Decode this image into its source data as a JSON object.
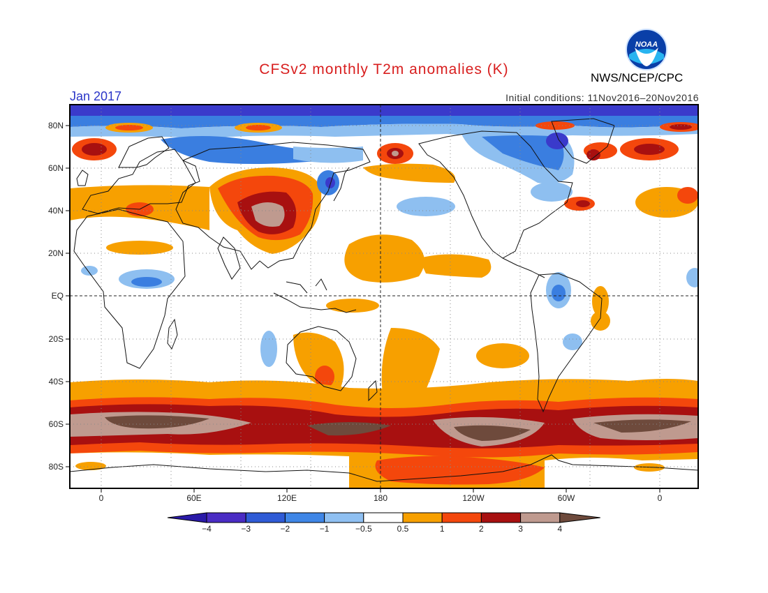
{
  "header": {
    "title": "CFSv2 monthly T2m anomalies (K)",
    "agency": "NWS/NCEP/CPC",
    "period": "Jan 2017",
    "initial_conditions": "Initial conditions: 11Nov2016–20Nov2016",
    "logo_text": "NOAA"
  },
  "map": {
    "lon_labels": [
      "0",
      "60E",
      "120E",
      "180",
      "120W",
      "60W",
      "0"
    ],
    "lat_labels": [
      "80N",
      "60N",
      "40N",
      "20N",
      "EQ",
      "20S",
      "40S",
      "60S",
      "80S"
    ]
  },
  "colorbar": {
    "levels": [
      "−4",
      "−3",
      "−2",
      "−1",
      "−0.5",
      "0.5",
      "1",
      "2",
      "3",
      "4"
    ],
    "colors": [
      "#4a2cc4",
      "#2f5bd6",
      "#3f86e6",
      "#8fc0f2",
      "#ffffff",
      "#f7a000",
      "#f4470c",
      "#a81010",
      "#bf9a8f",
      "#6e4a3c"
    ],
    "low_end_color": "#2a1aa8",
    "high_end_color": "#6e4a3c"
  },
  "palette": {
    "deep_blue": "#3a3acb",
    "mid_blue": "#3a7ee0",
    "light_blue": "#8ebff0",
    "orange": "#f7a000",
    "red_orange": "#f4470c",
    "dark_red": "#a81010",
    "tan": "#bf9a8f",
    "brown": "#6e4a3c"
  }
}
